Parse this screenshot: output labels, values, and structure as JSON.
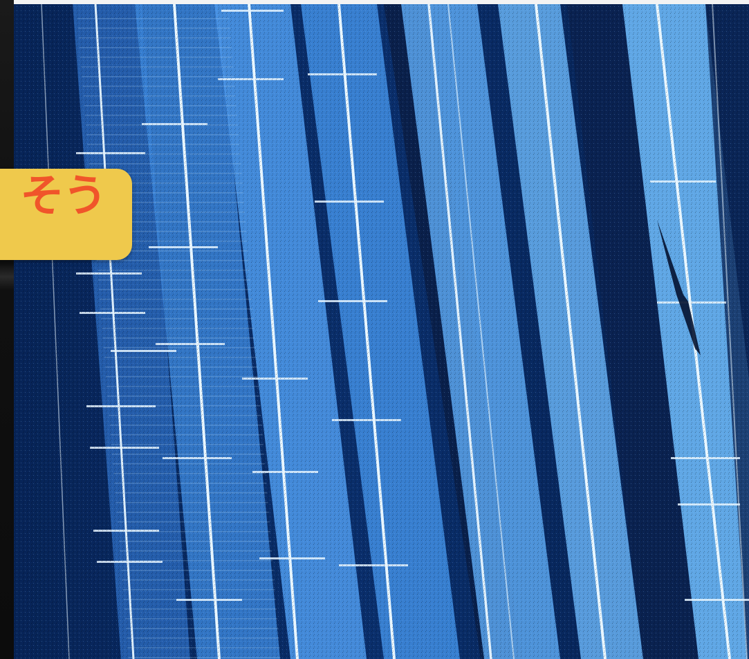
{
  "overlay": {
    "label": "そう",
    "badge_color": "#efc94c",
    "text_color": "#f0552a"
  },
  "image": {
    "description_colors": {
      "background": "#0a2a5e",
      "band": "#3f8fe0",
      "line": "#e8f6ff"
    }
  }
}
